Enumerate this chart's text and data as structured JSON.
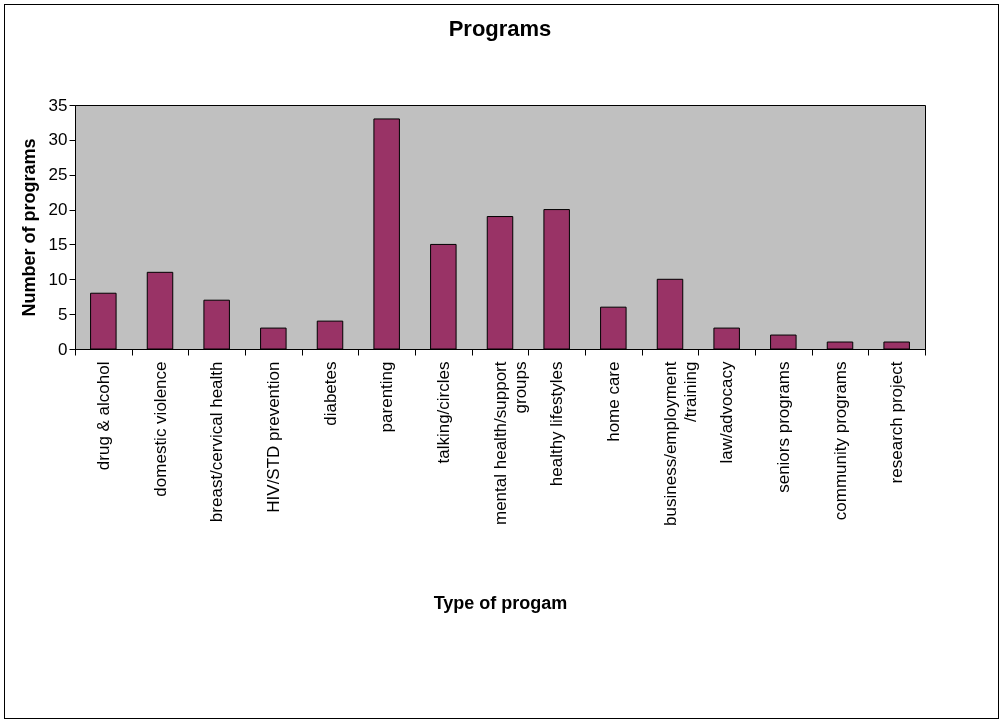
{
  "chart_data": {
    "type": "bar",
    "title": "Programs",
    "xlabel": "Type of progam",
    "ylabel": "Number of programs",
    "categories": [
      "drug & alcohol",
      "domestic violence",
      "breast/cervical health",
      "HIV/STD prevention",
      "diabetes",
      "parenting",
      "talking/circles",
      "mental health/support groups",
      "healthy lifestyles",
      "home care",
      "business/employment /training",
      "law/advocacy",
      "seniors programs",
      "community programs",
      "research project"
    ],
    "values": [
      8,
      11,
      7,
      3,
      4,
      33,
      15,
      19,
      20,
      6,
      10,
      3,
      2,
      1,
      1
    ],
    "color": "#993366",
    "ylim": [
      0,
      35
    ],
    "yticks": [
      0,
      5,
      10,
      15,
      20,
      25,
      30,
      35
    ],
    "grid": false
  }
}
